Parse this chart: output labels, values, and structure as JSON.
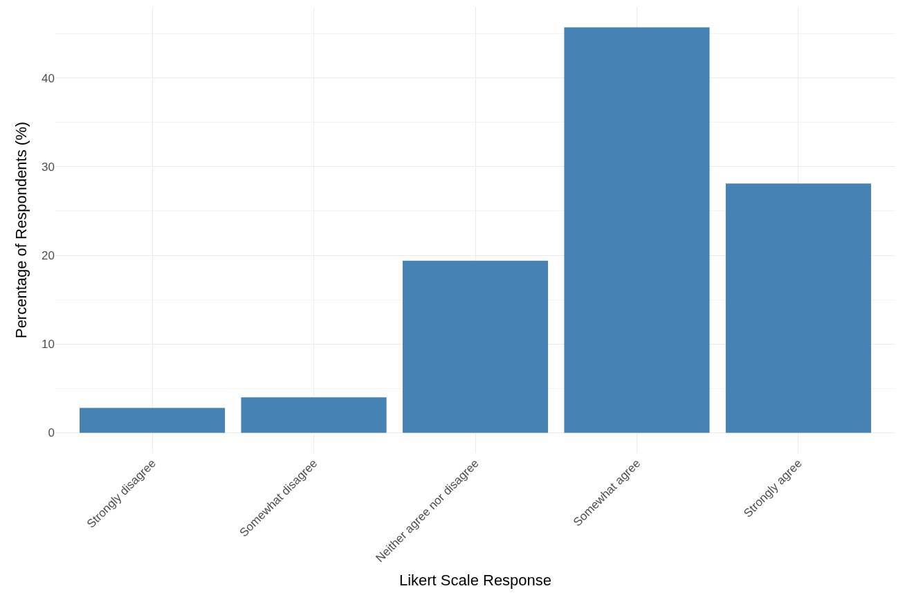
{
  "chart_data": {
    "type": "bar",
    "xlabel": "Likert Scale Response",
    "ylabel": "Percentage of Respondents (%)",
    "categories": [
      "Strongly disagree",
      "Somewhat disagree",
      "Neither agree nor disagree",
      "Somewhat agree",
      "Strongly agree"
    ],
    "values": [
      2.8,
      4.0,
      19.4,
      45.7,
      28.1
    ],
    "color": "#4682b4",
    "ylim": [
      -2.3,
      48
    ],
    "yticks": [
      0,
      10,
      20,
      30,
      40
    ],
    "grid": true
  }
}
